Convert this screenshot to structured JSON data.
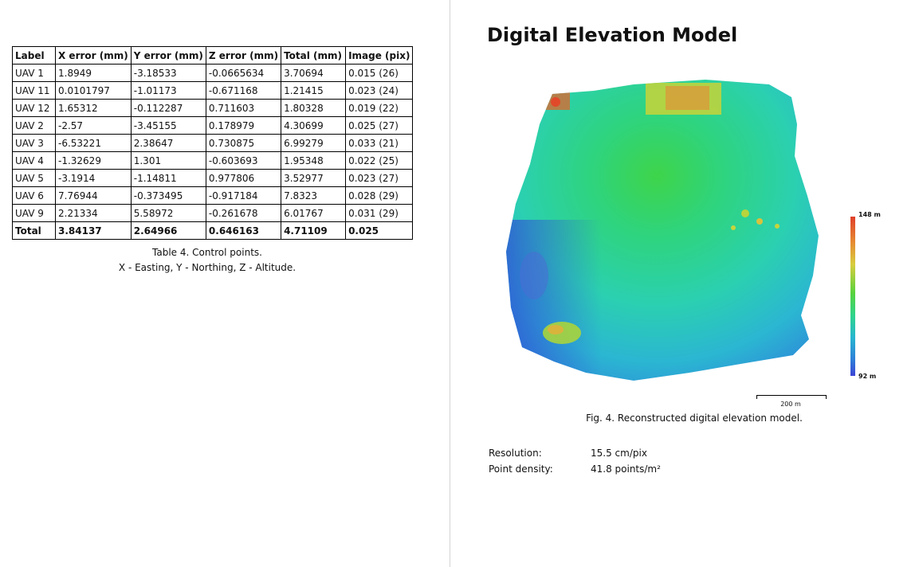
{
  "control_points": {
    "headers": [
      "Label",
      "X error (mm)",
      "Y error (mm)",
      "Z error (mm)",
      "Total (mm)",
      "Image (pix)"
    ],
    "rows": [
      [
        "UAV 1",
        "1.8949",
        "-3.18533",
        "-0.0665634",
        "3.70694",
        "0.015 (26)"
      ],
      [
        "UAV 11",
        "0.0101797",
        "-1.01173",
        "-0.671168",
        "1.21415",
        "0.023 (24)"
      ],
      [
        "UAV 12",
        "1.65312",
        "-0.112287",
        "0.711603",
        "1.80328",
        "0.019 (22)"
      ],
      [
        "UAV 2",
        "-2.57",
        "-3.45155",
        "0.178979",
        "4.30699",
        "0.025 (27)"
      ],
      [
        "UAV 3",
        "-6.53221",
        "2.38647",
        "0.730875",
        "6.99279",
        "0.033 (21)"
      ],
      [
        "UAV 4",
        "-1.32629",
        "1.301",
        "-0.603693",
        "1.95348",
        "0.022 (25)"
      ],
      [
        "UAV 5",
        "-3.1914",
        "-1.14811",
        "0.977806",
        "3.52977",
        "0.023 (27)"
      ],
      [
        "UAV 6",
        "7.76944",
        "-0.373495",
        "-0.917184",
        "7.8323",
        "0.028 (29)"
      ],
      [
        "UAV 9",
        "2.21334",
        "5.58972",
        "-0.261678",
        "6.01767",
        "0.031 (29)"
      ]
    ],
    "total": [
      "Total",
      "3.84137",
      "2.64966",
      "0.646163",
      "4.71109",
      "0.025"
    ],
    "caption": "Table 4. Control points.",
    "legend": "X - Easting, Y - Northing, Z - Altitude."
  },
  "dem": {
    "title": "Digital Elevation Model",
    "colorbar_max": "148 m",
    "colorbar_min": "92 m",
    "scale_label": "200 m",
    "caption": "Fig. 4. Reconstructed digital elevation model.",
    "resolution_label": "Resolution:",
    "resolution_value": "15.5 cm/pix",
    "density_label": "Point density:",
    "density_value": "41.8 points/m²"
  }
}
